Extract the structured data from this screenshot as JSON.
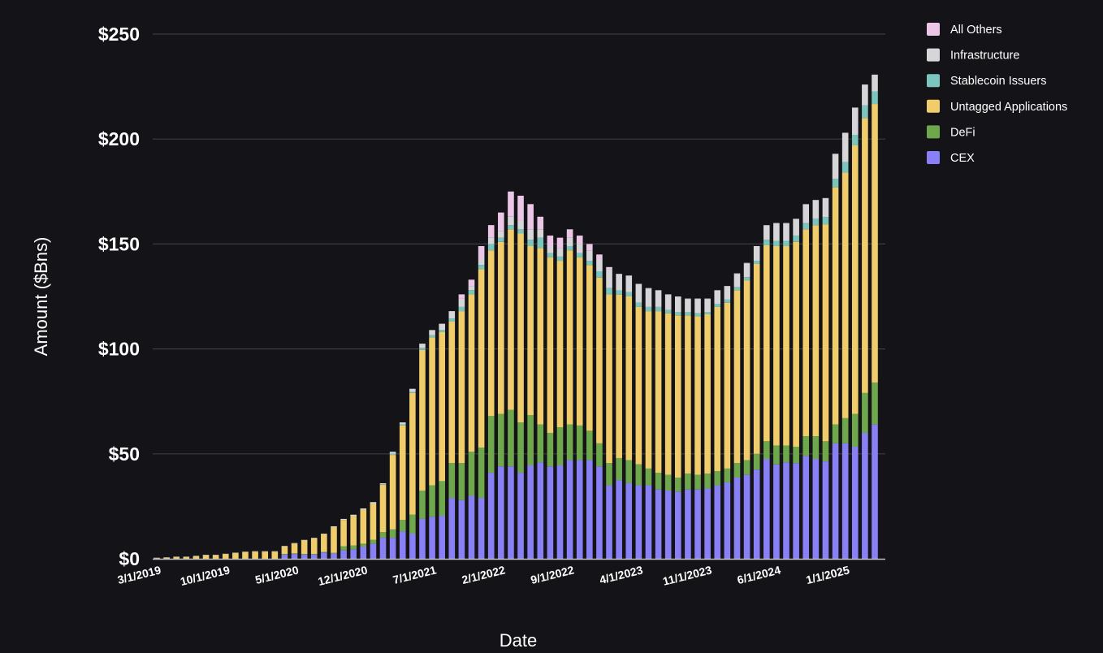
{
  "chart_data": {
    "type": "bar",
    "stacked": true,
    "title": "",
    "xlabel": "Date",
    "ylabel": "Amount ($Bns)",
    "ylim": [
      0,
      250
    ],
    "yticks": [
      0,
      50,
      100,
      150,
      200,
      250
    ],
    "ytick_labels": [
      "$0",
      "$50",
      "$100",
      "$150",
      "$200",
      "$250"
    ],
    "grid": "horizontal",
    "legend_position": "right",
    "x_start": "3/1/2019",
    "x_frequency": "monthly",
    "xtick_labels": [
      "3/1/2019",
      "10/1/2019",
      "5/1/2020",
      "12/1/2020",
      "7/1/2021",
      "2/1/2022",
      "9/1/2022",
      "4/1/2023",
      "11/1/2023",
      "6/1/2024",
      "1/1/2025"
    ],
    "categories": [
      "3/1/2019",
      "4/1/2019",
      "5/1/2019",
      "6/1/2019",
      "7/1/2019",
      "8/1/2019",
      "9/1/2019",
      "10/1/2019",
      "11/1/2019",
      "12/1/2019",
      "1/1/2020",
      "2/1/2020",
      "3/1/2020",
      "4/1/2020",
      "5/1/2020",
      "6/1/2020",
      "7/1/2020",
      "8/1/2020",
      "9/1/2020",
      "10/1/2020",
      "11/1/2020",
      "12/1/2020",
      "1/1/2021",
      "2/1/2021",
      "3/1/2021",
      "4/1/2021",
      "5/1/2021",
      "6/1/2021",
      "7/1/2021",
      "8/1/2021",
      "9/1/2021",
      "10/1/2021",
      "11/1/2021",
      "12/1/2021",
      "1/1/2022",
      "2/1/2022",
      "3/1/2022",
      "4/1/2022",
      "5/1/2022",
      "6/1/2022",
      "7/1/2022",
      "8/1/2022",
      "9/1/2022",
      "10/1/2022",
      "11/1/2022",
      "12/1/2022",
      "1/1/2023",
      "2/1/2023",
      "3/1/2023",
      "4/1/2023",
      "5/1/2023",
      "6/1/2023",
      "7/1/2023",
      "8/1/2023",
      "9/1/2023",
      "10/1/2023",
      "11/1/2023",
      "12/1/2023",
      "1/1/2024",
      "2/1/2024",
      "3/1/2024",
      "4/1/2024",
      "5/1/2024",
      "6/1/2024",
      "7/1/2024",
      "8/1/2024",
      "9/1/2024",
      "10/1/2024",
      "11/1/2024",
      "12/1/2024",
      "1/1/2025",
      "2/1/2025",
      "3/1/2025",
      "4/1/2025"
    ],
    "series": [
      {
        "name": "CEX",
        "color": "#8a80f5",
        "values": [
          0,
          0,
          0,
          0,
          0,
          0,
          0,
          0,
          0,
          0,
          0,
          0,
          0,
          2,
          2.3,
          2,
          2,
          3,
          2.5,
          4,
          4.5,
          5.8,
          7.2,
          10,
          10,
          13,
          12,
          19,
          20,
          20.5,
          29,
          28,
          30,
          29,
          41,
          44,
          44,
          41,
          44.5,
          46,
          44,
          44.5,
          47,
          47,
          47,
          44,
          35,
          37.5,
          36,
          35,
          35,
          33,
          32.5,
          32,
          33,
          33,
          33.5,
          35,
          36.4,
          38.7,
          40,
          42.5,
          47.6,
          45,
          46,
          45.6,
          49,
          47.6,
          46.4,
          55,
          55,
          53.4,
          60,
          64
        ]
      },
      {
        "name": "DeFi",
        "color": "#6fa84c",
        "values": [
          0,
          0,
          0,
          0,
          0,
          0,
          0,
          0,
          0,
          0,
          0,
          0,
          0,
          0.3,
          0.3,
          0.3,
          0.3,
          0.3,
          0.3,
          2,
          1.8,
          1.4,
          1.8,
          2.7,
          4,
          5.5,
          9,
          13.5,
          15,
          16.5,
          16.6,
          17.6,
          21,
          24,
          27,
          25,
          27,
          24,
          24,
          18,
          16,
          18.2,
          17,
          16.5,
          14,
          11,
          10.6,
          10.5,
          11,
          10,
          8,
          8,
          7.5,
          6.7,
          7.6,
          7,
          7.1,
          6.8,
          6.6,
          6.9,
          7,
          7.5,
          8.4,
          9,
          8,
          7.8,
          9.4,
          10.8,
          9.6,
          9,
          12,
          15.6,
          19,
          20
        ]
      },
      {
        "name": "Untagged Applications",
        "color": "#f0cd6a",
        "values": [
          0.3,
          0.5,
          0.8,
          0.8,
          1.2,
          1.7,
          1.7,
          2.2,
          2.7,
          3.2,
          3.4,
          3.4,
          3.4,
          3.5,
          4.6,
          6.4,
          7.4,
          8.4,
          12.3,
          12.5,
          14.2,
          16.2,
          17.3,
          22.5,
          35.5,
          45,
          58,
          67,
          70.5,
          71,
          67.4,
          72.4,
          75,
          85,
          79,
          82,
          86,
          90,
          80.5,
          84,
          83.6,
          79.3,
          83,
          80.1,
          79,
          79,
          80.4,
          77.8,
          78,
          75,
          75,
          77,
          77,
          77.3,
          75.4,
          75.5,
          75.9,
          78.2,
          79,
          82.4,
          85.7,
          90.5,
          93.4,
          95,
          95,
          97.6,
          98.6,
          100.6,
          103.4,
          113,
          117,
          128,
          131,
          132.7
        ]
      },
      {
        "name": "Stablecoin Issuers",
        "color": "#7cc5be",
        "values": [
          0,
          0,
          0,
          0,
          0,
          0,
          0,
          0,
          0,
          0,
          0,
          0,
          0,
          0,
          0,
          0,
          0,
          0,
          0,
          0,
          0,
          0,
          0,
          0.3,
          0.5,
          0.5,
          0.5,
          1,
          1,
          1,
          1.5,
          2,
          2,
          2,
          3,
          2,
          2,
          2,
          3,
          5,
          2,
          2,
          2,
          2,
          2,
          3,
          3,
          2,
          2,
          2,
          2,
          2,
          1.5,
          1.5,
          1.5,
          1.5,
          1,
          1.5,
          1.5,
          1.5,
          1.5,
          1.5,
          2.6,
          2.5,
          2.5,
          3,
          3,
          3,
          3.5,
          4,
          5,
          5,
          6,
          6
        ]
      },
      {
        "name": "Infrastructure",
        "color": "#d6d6d8",
        "values": [
          0.2,
          0.2,
          0.2,
          0.2,
          0.2,
          0.2,
          0.2,
          0.2,
          0.2,
          0.2,
          0.2,
          0.2,
          0.2,
          0.3,
          0.3,
          0.3,
          0.3,
          0.3,
          0.4,
          0.5,
          0.5,
          0.6,
          0.7,
          0.5,
          1,
          1,
          1.5,
          2,
          2.5,
          3,
          3.5,
          4,
          2,
          3,
          3,
          3,
          4,
          4,
          5,
          4,
          3.4,
          4,
          4,
          4.4,
          5,
          6,
          9,
          7.8,
          7.8,
          8.8,
          8.8,
          7.8,
          7.3,
          7.3,
          6.3,
          6.8,
          6.3,
          6.3,
          6.3,
          6.3,
          6.6,
          6.8,
          6.8,
          8.3,
          8.3,
          7.8,
          8.8,
          8.8,
          8.8,
          11.8,
          13.8,
          12.8,
          9.8,
          7.8
        ]
      },
      {
        "name": "All Others",
        "color": "#ebc6e6",
        "values": [
          0,
          0,
          0,
          0,
          0,
          0,
          0,
          0,
          0,
          0,
          0,
          0,
          0,
          0,
          0,
          0,
          0,
          0,
          0,
          0,
          0,
          0,
          0,
          0,
          0,
          0,
          0,
          0,
          0,
          0,
          0,
          2,
          3,
          6,
          6,
          9,
          12,
          12,
          12,
          6,
          5,
          5,
          4,
          4,
          3,
          2,
          1,
          0.2,
          0.2,
          0.2,
          0.2,
          0.2,
          0.2,
          0.2,
          0.2,
          0.2,
          0.2,
          0.2,
          0.2,
          0.2,
          0.2,
          0.2,
          0.2,
          0.2,
          0.2,
          0.2,
          0.2,
          0.2,
          0.2,
          0.2,
          0.2,
          0.2,
          0.2,
          0.2
        ]
      }
    ],
    "legend_order": [
      "All Others",
      "Infrastructure",
      "Stablecoin Issuers",
      "Untagged Applications",
      "DeFi",
      "CEX"
    ]
  }
}
